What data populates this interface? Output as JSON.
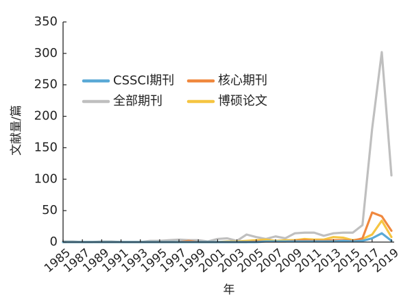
{
  "chart_data": {
    "type": "line",
    "title": "",
    "xlabel": "年",
    "ylabel": "文献量/篇",
    "ylim": [
      0,
      350
    ],
    "yticks": [
      "0",
      "50",
      "100",
      "150",
      "200",
      "250",
      "300",
      "350"
    ],
    "x": [
      1985,
      1986,
      1987,
      1988,
      1989,
      1990,
      1991,
      1992,
      1993,
      1994,
      1995,
      1996,
      1997,
      1998,
      1999,
      2000,
      2001,
      2002,
      2003,
      2004,
      2005,
      2006,
      2007,
      2008,
      2009,
      2010,
      2011,
      2012,
      2013,
      2014,
      2015,
      2016,
      2017,
      2018,
      2019
    ],
    "xtick_labels": [
      "1985",
      "1987",
      "1989",
      "1991",
      "1993",
      "1995",
      "1997",
      "1999",
      "2001",
      "2003",
      "2005",
      "2007",
      "2009",
      "2011",
      "2013",
      "2015",
      "2017",
      "2019"
    ],
    "grid": false,
    "legend_position": "upper-left",
    "series": [
      {
        "name": "CSSCI期刊",
        "color": "#5aa9d6",
        "values": [
          0,
          0,
          0,
          0,
          0,
          0,
          0,
          0,
          0,
          0,
          0,
          0,
          0,
          0,
          0,
          0,
          0,
          0,
          0,
          0,
          0,
          1,
          1,
          1,
          1,
          1,
          1,
          1,
          1,
          2,
          1,
          2,
          6,
          14,
          2
        ]
      },
      {
        "name": "核心期刊",
        "color": "#f0883e",
        "values": [
          0,
          0,
          0,
          0,
          0,
          0,
          0,
          0,
          0,
          0,
          0,
          0,
          0,
          2,
          0,
          0,
          0,
          0,
          0,
          0,
          1,
          1,
          1,
          1,
          2,
          3,
          2,
          2,
          3,
          3,
          2,
          6,
          47,
          41,
          18
        ]
      },
      {
        "name": "全部期刊",
        "color": "#bfbfbf",
        "values": [
          1,
          1,
          0,
          0,
          1,
          1,
          0,
          0,
          0,
          2,
          2,
          3,
          4,
          3,
          3,
          1,
          5,
          6,
          2,
          12,
          8,
          5,
          9,
          6,
          14,
          15,
          15,
          10,
          14,
          15,
          15,
          27,
          180,
          302,
          106
        ]
      },
      {
        "name": "博硕论文",
        "color": "#f5c542",
        "values": [
          0,
          0,
          0,
          0,
          0,
          0,
          0,
          0,
          0,
          0,
          0,
          0,
          0,
          0,
          0,
          0,
          0,
          1,
          1,
          2,
          3,
          4,
          2,
          3,
          3,
          5,
          4,
          4,
          8,
          7,
          3,
          5,
          12,
          34,
          8
        ]
      }
    ]
  }
}
